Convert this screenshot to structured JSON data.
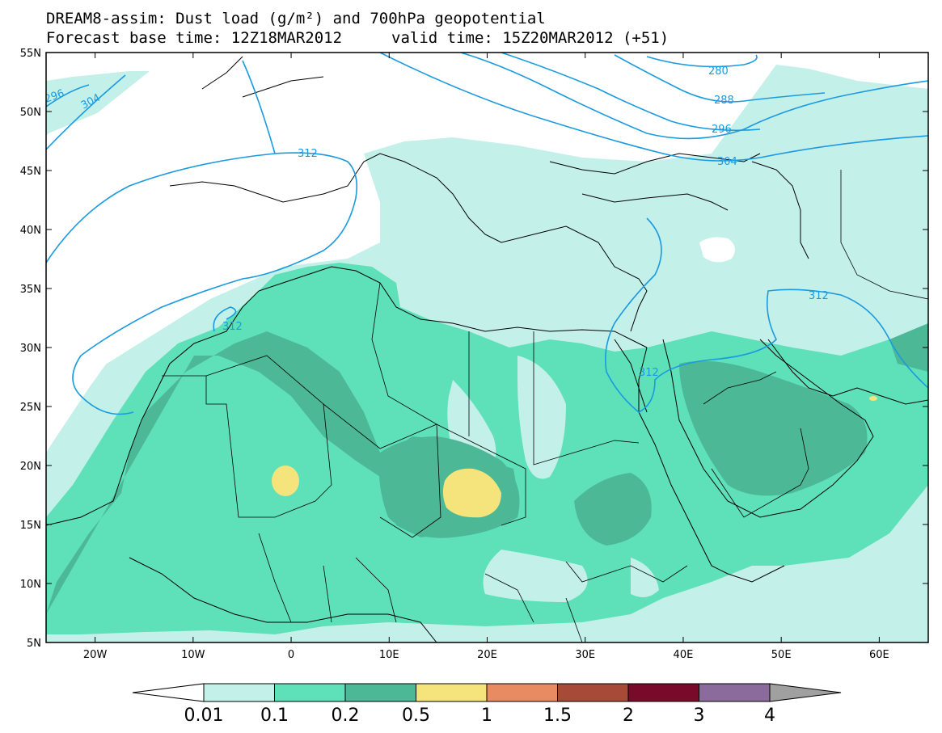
{
  "title": {
    "line1": "DREAM8-assim: Dust load (g/m²) and 700hPa geopotential",
    "line2_left": "Forecast base time: 12Z18MAR2012",
    "line2_right": "valid time: 15Z20MAR2012 (+51)"
  },
  "map": {
    "lon_range": [
      -25,
      65
    ],
    "lat_range": [
      5,
      55
    ],
    "lat_ticks": [
      "55N",
      "50N",
      "45N",
      "40N",
      "35N",
      "30N",
      "25N",
      "20N",
      "15N",
      "10N",
      "5N"
    ],
    "lon_ticks": [
      "20W",
      "10W",
      "0",
      "10E",
      "20E",
      "30E",
      "40E",
      "50E",
      "60E"
    ],
    "lat_tick_values": [
      55,
      50,
      45,
      40,
      35,
      30,
      25,
      20,
      15,
      10,
      5
    ],
    "lon_tick_values": [
      -20,
      -10,
      0,
      10,
      20,
      30,
      40,
      50,
      60
    ]
  },
  "contours": {
    "color": "#1a9ae0",
    "labels": [
      "280",
      "288",
      "296",
      "304",
      "312",
      "312",
      "312",
      "312",
      "304",
      "296"
    ]
  },
  "colorbar": {
    "labels": [
      "0.01",
      "0.1",
      "0.2",
      "0.5",
      "1",
      "1.5",
      "2",
      "3",
      "4"
    ],
    "colors": [
      "#c4f0ea",
      "#5ee0b8",
      "#4cb896",
      "#f5e47c",
      "#e88b62",
      "#a84a38",
      "#7a0a2a",
      "#8b6a9c",
      "#a0a0a0"
    ]
  },
  "chart_data": {
    "type": "heatmap",
    "title": "DREAM8-assim: Dust load (g/m²) and 700hPa geopotential",
    "xlabel": "",
    "ylabel": "",
    "xlim": [
      -25,
      65
    ],
    "ylim": [
      5,
      55
    ],
    "levels": [
      0.01,
      0.1,
      0.2,
      0.5,
      1,
      1.5,
      2,
      3,
      4
    ],
    "max_dust_regions": [
      {
        "level": ">=0.5",
        "lon": -1,
        "lat": 18.5
      },
      {
        "level": ">=0.5",
        "lon": 18,
        "lat": 17
      },
      {
        "level": ">=0.5",
        "lon": 59.5,
        "lat": 25.5
      }
    ],
    "geopotential_contours_dam": [
      280,
      288,
      296,
      304,
      312
    ]
  }
}
